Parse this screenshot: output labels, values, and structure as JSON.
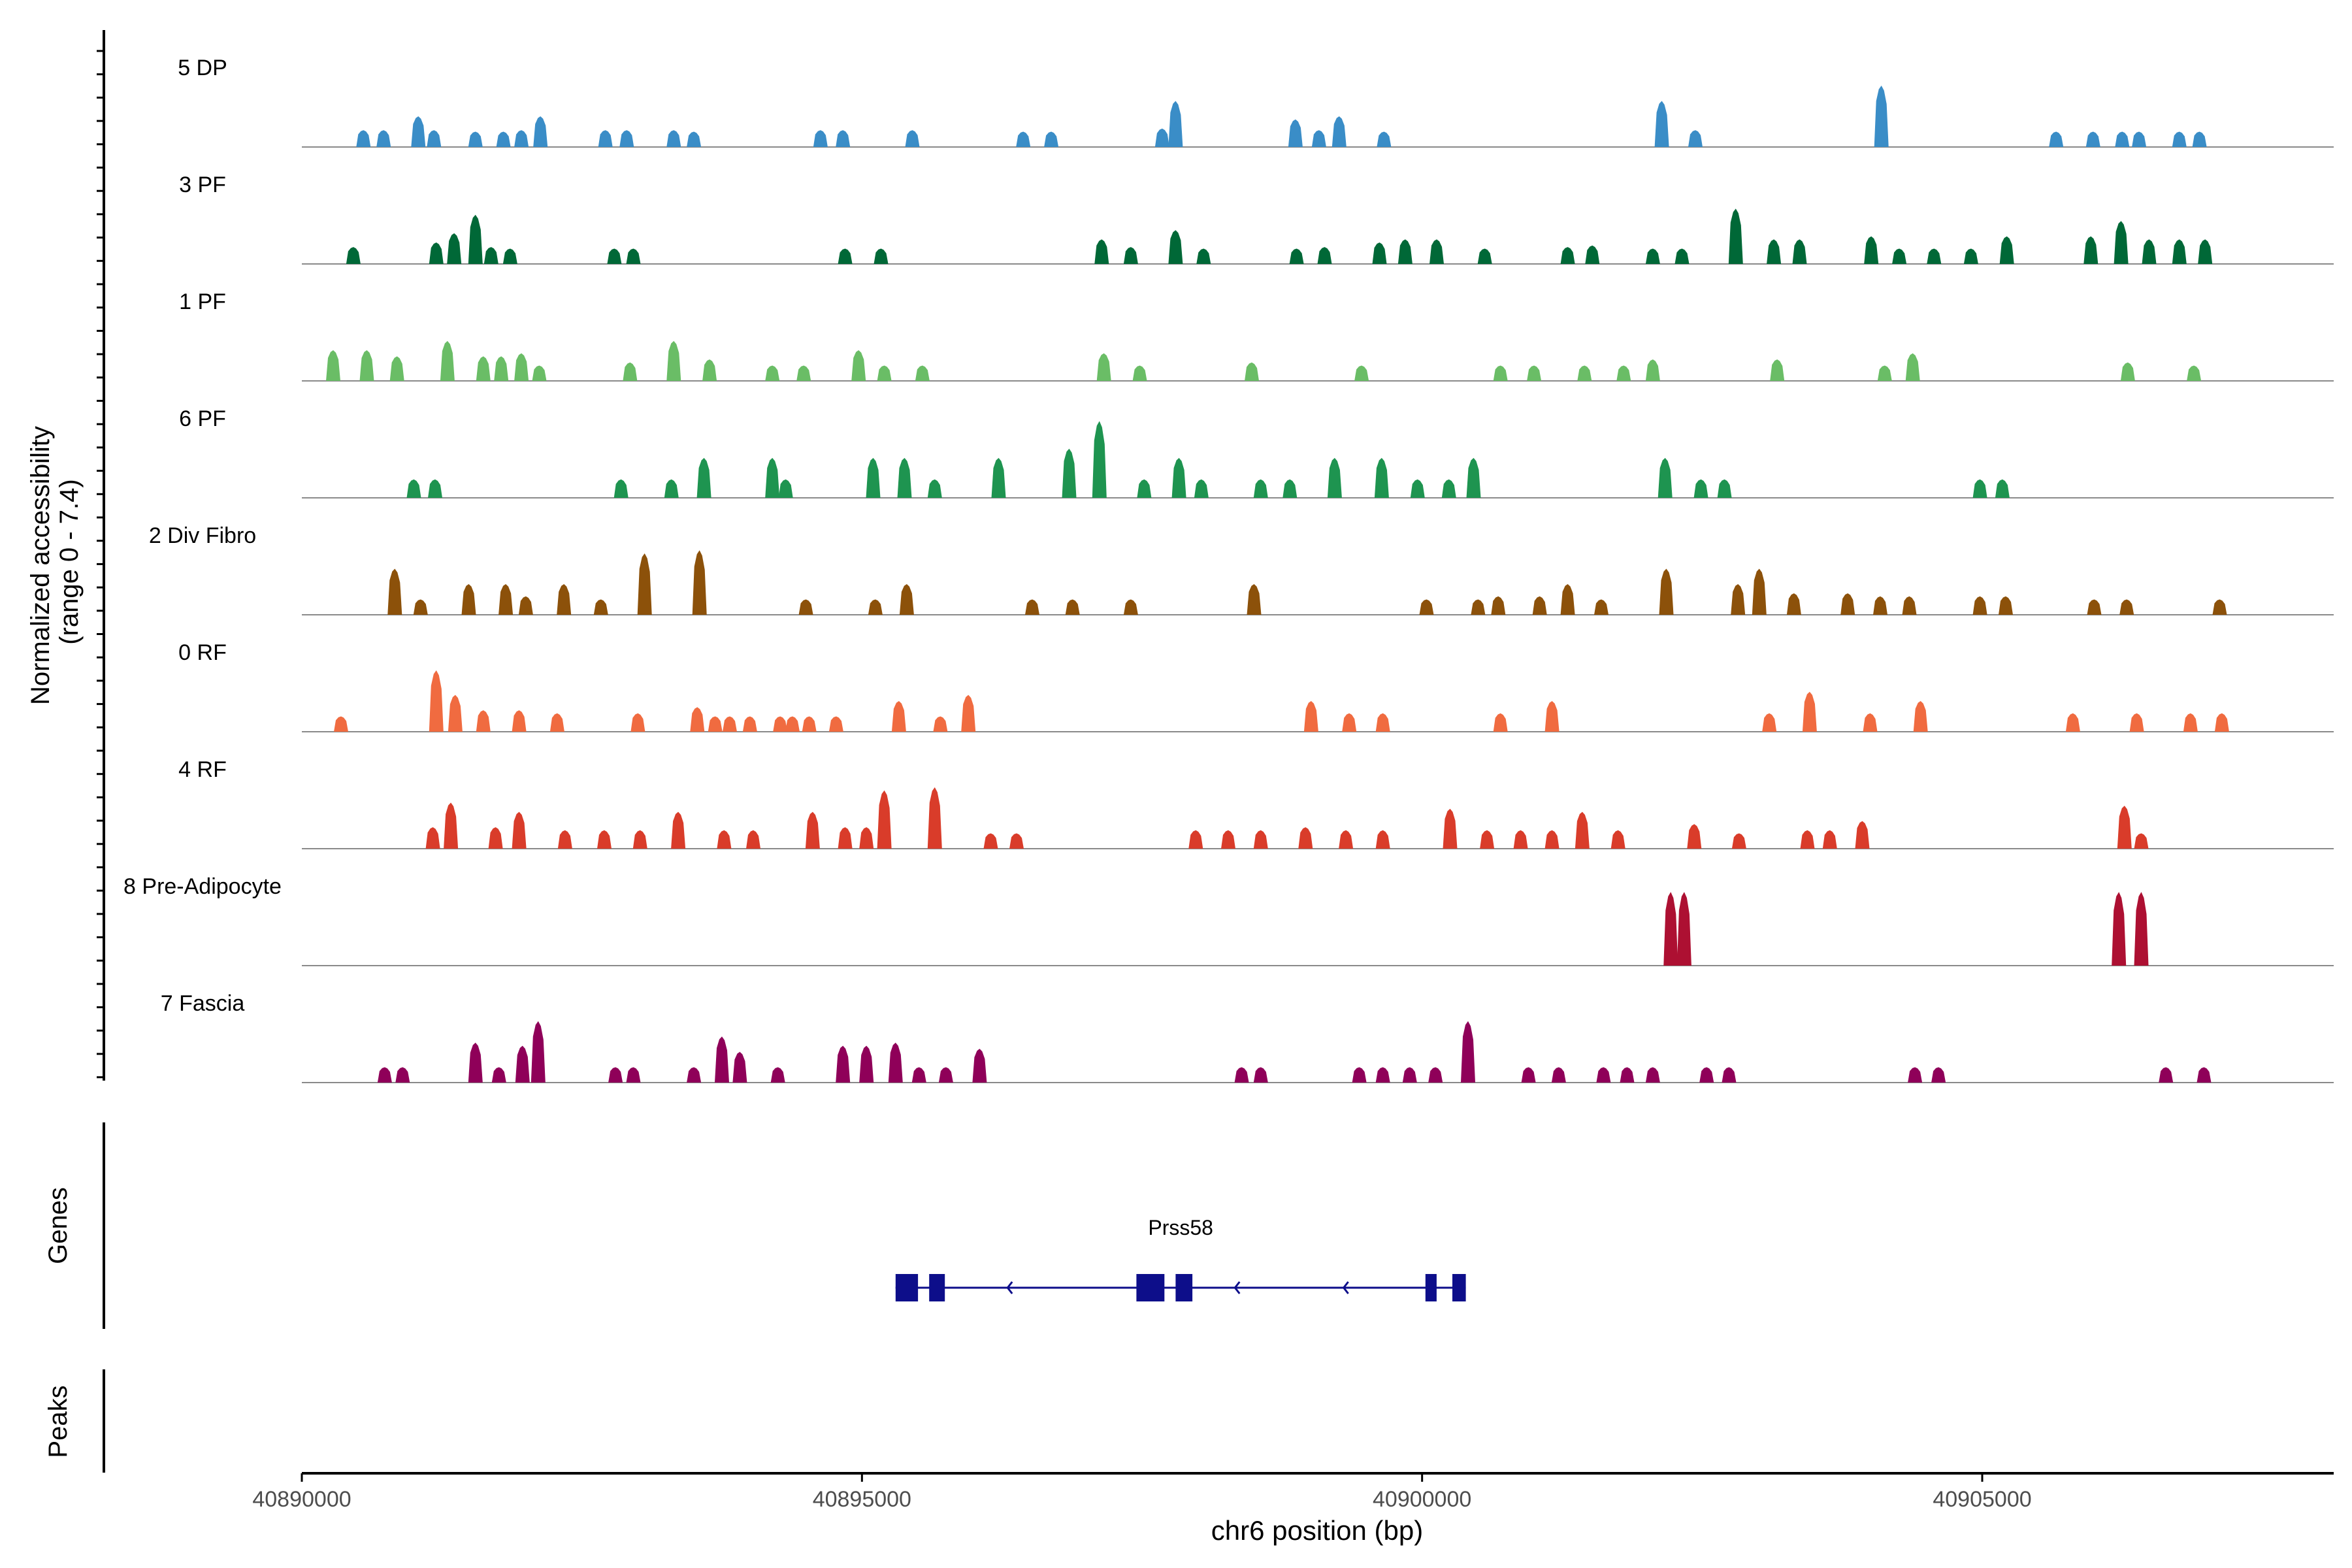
{
  "chart_data": {
    "type": "area",
    "title": "",
    "ylabel_line1": "Normalized accessibility",
    "ylabel_line2": "(range 0 - 7.4)",
    "y_range": [
      0,
      7.4
    ],
    "xlabel": "chr6 position (bp)",
    "xlim": [
      40889800,
      40908650
    ],
    "xticks": [
      40890000,
      40895000,
      40900000,
      40905000
    ],
    "xtick_labels": [
      "40890000",
      "40895000",
      "40900000",
      "40905000"
    ],
    "tracks": [
      {
        "name": "5 DP",
        "color": "#3A8DC7",
        "peaks": [
          [
            40890550,
            0.55
          ],
          [
            40890730,
            0.55
          ],
          [
            40891040,
            1.0
          ],
          [
            40891180,
            0.55
          ],
          [
            40891550,
            0.5
          ],
          [
            40891800,
            0.5
          ],
          [
            40891960,
            0.55
          ],
          [
            40892130,
            1.0
          ],
          [
            40892710,
            0.55
          ],
          [
            40892900,
            0.55
          ],
          [
            40893320,
            0.55
          ],
          [
            40893500,
            0.5
          ],
          [
            40894630,
            0.55
          ],
          [
            40894830,
            0.55
          ],
          [
            40895450,
            0.55
          ],
          [
            40896440,
            0.5
          ],
          [
            40896690,
            0.5
          ],
          [
            40897680,
            0.6
          ],
          [
            40897800,
            1.5
          ],
          [
            40898870,
            0.9
          ],
          [
            40899080,
            0.55
          ],
          [
            40899260,
            1.0
          ],
          [
            40899660,
            0.5
          ],
          [
            40902140,
            1.5
          ],
          [
            40902440,
            0.55
          ],
          [
            40904100,
            2.0
          ],
          [
            40905660,
            0.5
          ],
          [
            40905990,
            0.5
          ],
          [
            40906250,
            0.5
          ],
          [
            40906400,
            0.5
          ],
          [
            40906760,
            0.5
          ],
          [
            40906940,
            0.5
          ]
        ]
      },
      {
        "name": "3 PF",
        "color": "#006837",
        "peaks": [
          [
            40890460,
            0.55
          ],
          [
            40891200,
            0.7
          ],
          [
            40891360,
            1.0
          ],
          [
            40891550,
            1.6
          ],
          [
            40891690,
            0.55
          ],
          [
            40891860,
            0.5
          ],
          [
            40892790,
            0.5
          ],
          [
            40892960,
            0.5
          ],
          [
            40894850,
            0.5
          ],
          [
            40895170,
            0.5
          ],
          [
            40897140,
            0.8
          ],
          [
            40897400,
            0.55
          ],
          [
            40897800,
            1.1
          ],
          [
            40898050,
            0.5
          ],
          [
            40898880,
            0.5
          ],
          [
            40899130,
            0.55
          ],
          [
            40899620,
            0.7
          ],
          [
            40899850,
            0.8
          ],
          [
            40900130,
            0.8
          ],
          [
            40900560,
            0.5
          ],
          [
            40901300,
            0.55
          ],
          [
            40901520,
            0.6
          ],
          [
            40902060,
            0.5
          ],
          [
            40902320,
            0.5
          ],
          [
            40902800,
            1.8
          ],
          [
            40903140,
            0.8
          ],
          [
            40903370,
            0.8
          ],
          [
            40904010,
            0.9
          ],
          [
            40904260,
            0.5
          ],
          [
            40904570,
            0.5
          ],
          [
            40904900,
            0.5
          ],
          [
            40905220,
            0.9
          ],
          [
            40905970,
            0.9
          ],
          [
            40906240,
            1.4
          ],
          [
            40906490,
            0.8
          ],
          [
            40906760,
            0.8
          ],
          [
            40906990,
            0.8
          ]
        ]
      },
      {
        "name": "1 PF",
        "color": "#6ABD66",
        "peaks": [
          [
            40890280,
            1.0
          ],
          [
            40890580,
            1.0
          ],
          [
            40890850,
            0.8
          ],
          [
            40891300,
            1.3
          ],
          [
            40891620,
            0.8
          ],
          [
            40891780,
            0.8
          ],
          [
            40891960,
            0.9
          ],
          [
            40892120,
            0.5
          ],
          [
            40892930,
            0.6
          ],
          [
            40893320,
            1.3
          ],
          [
            40893640,
            0.7
          ],
          [
            40894200,
            0.5
          ],
          [
            40894480,
            0.5
          ],
          [
            40894970,
            1.0
          ],
          [
            40895200,
            0.5
          ],
          [
            40895540,
            0.5
          ],
          [
            40897160,
            0.9
          ],
          [
            40897480,
            0.5
          ],
          [
            40898480,
            0.6
          ],
          [
            40899460,
            0.5
          ],
          [
            40900700,
            0.5
          ],
          [
            40901000,
            0.5
          ],
          [
            40901450,
            0.5
          ],
          [
            40901800,
            0.5
          ],
          [
            40902060,
            0.7
          ],
          [
            40903170,
            0.7
          ],
          [
            40904130,
            0.5
          ],
          [
            40904380,
            0.9
          ],
          [
            40906300,
            0.6
          ],
          [
            40906890,
            0.5
          ]
        ]
      },
      {
        "name": "6 PF",
        "color": "#1E9450",
        "peaks": [
          [
            40891000,
            0.6
          ],
          [
            40891190,
            0.6
          ],
          [
            40892850,
            0.6
          ],
          [
            40893300,
            0.6
          ],
          [
            40893590,
            1.3
          ],
          [
            40894200,
            1.3
          ],
          [
            40894320,
            0.6
          ],
          [
            40895100,
            1.3
          ],
          [
            40895380,
            1.3
          ],
          [
            40895650,
            0.6
          ],
          [
            40896220,
            1.3
          ],
          [
            40896850,
            1.6
          ],
          [
            40897120,
            2.5
          ],
          [
            40897520,
            0.6
          ],
          [
            40897830,
            1.3
          ],
          [
            40898030,
            0.6
          ],
          [
            40898560,
            0.6
          ],
          [
            40898820,
            0.6
          ],
          [
            40899220,
            1.3
          ],
          [
            40899640,
            1.3
          ],
          [
            40899960,
            0.6
          ],
          [
            40900240,
            0.6
          ],
          [
            40900460,
            1.3
          ],
          [
            40902170,
            1.3
          ],
          [
            40902490,
            0.6
          ],
          [
            40902700,
            0.6
          ],
          [
            40904980,
            0.6
          ],
          [
            40905180,
            0.6
          ]
        ]
      },
      {
        "name": "2 Div Fibro",
        "color": "#8C510A",
        "peaks": [
          [
            40890830,
            1.5
          ],
          [
            40891060,
            0.5
          ],
          [
            40891490,
            1.0
          ],
          [
            40891820,
            1.0
          ],
          [
            40892000,
            0.6
          ],
          [
            40892340,
            1.0
          ],
          [
            40892670,
            0.5
          ],
          [
            40893060,
            2.0
          ],
          [
            40893550,
            2.1
          ],
          [
            40894500,
            0.5
          ],
          [
            40895120,
            0.5
          ],
          [
            40895400,
            1.0
          ],
          [
            40896520,
            0.5
          ],
          [
            40896880,
            0.5
          ],
          [
            40897400,
            0.5
          ],
          [
            40898500,
            1.0
          ],
          [
            40900040,
            0.5
          ],
          [
            40900500,
            0.5
          ],
          [
            40900680,
            0.6
          ],
          [
            40901050,
            0.6
          ],
          [
            40901300,
            1.0
          ],
          [
            40901600,
            0.5
          ],
          [
            40902180,
            1.5
          ],
          [
            40902820,
            1.0
          ],
          [
            40903010,
            1.5
          ],
          [
            40903320,
            0.7
          ],
          [
            40903800,
            0.7
          ],
          [
            40904090,
            0.6
          ],
          [
            40904350,
            0.6
          ],
          [
            40904980,
            0.6
          ],
          [
            40905210,
            0.6
          ],
          [
            40906000,
            0.5
          ],
          [
            40906290,
            0.5
          ],
          [
            40907120,
            0.5
          ]
        ]
      },
      {
        "name": "0 RF",
        "color": "#F06B40",
        "peaks": [
          [
            40890350,
            0.5
          ],
          [
            40891200,
            2.0
          ],
          [
            40891370,
            1.2
          ],
          [
            40891620,
            0.7
          ],
          [
            40891940,
            0.7
          ],
          [
            40892280,
            0.6
          ],
          [
            40893000,
            0.6
          ],
          [
            40893530,
            0.8
          ],
          [
            40893690,
            0.5
          ],
          [
            40893820,
            0.5
          ],
          [
            40894000,
            0.5
          ],
          [
            40894270,
            0.5
          ],
          [
            40894380,
            0.5
          ],
          [
            40894530,
            0.5
          ],
          [
            40894770,
            0.5
          ],
          [
            40895330,
            1.0
          ],
          [
            40895700,
            0.5
          ],
          [
            40895950,
            1.2
          ],
          [
            40899010,
            1.0
          ],
          [
            40899350,
            0.6
          ],
          [
            40899650,
            0.6
          ],
          [
            40900700,
            0.6
          ],
          [
            40901160,
            1.0
          ],
          [
            40903100,
            0.6
          ],
          [
            40903460,
            1.3
          ],
          [
            40904000,
            0.6
          ],
          [
            40904450,
            1.0
          ],
          [
            40905810,
            0.6
          ],
          [
            40906380,
            0.6
          ],
          [
            40906860,
            0.6
          ],
          [
            40907140,
            0.6
          ]
        ]
      },
      {
        "name": "4 RF",
        "color": "#D93C2A",
        "peaks": [
          [
            40891170,
            0.7
          ],
          [
            40891330,
            1.5
          ],
          [
            40891730,
            0.7
          ],
          [
            40891940,
            1.2
          ],
          [
            40892350,
            0.6
          ],
          [
            40892700,
            0.6
          ],
          [
            40893020,
            0.6
          ],
          [
            40893360,
            1.2
          ],
          [
            40893770,
            0.6
          ],
          [
            40894030,
            0.6
          ],
          [
            40894560,
            1.2
          ],
          [
            40894850,
            0.7
          ],
          [
            40895040,
            0.7
          ],
          [
            40895200,
            1.9
          ],
          [
            40895650,
            2.0
          ],
          [
            40896150,
            0.5
          ],
          [
            40896380,
            0.5
          ],
          [
            40897980,
            0.6
          ],
          [
            40898270,
            0.6
          ],
          [
            40898560,
            0.6
          ],
          [
            40898960,
            0.7
          ],
          [
            40899320,
            0.6
          ],
          [
            40899650,
            0.6
          ],
          [
            40900250,
            1.3
          ],
          [
            40900580,
            0.6
          ],
          [
            40900880,
            0.6
          ],
          [
            40901160,
            0.6
          ],
          [
            40901430,
            1.2
          ],
          [
            40901750,
            0.6
          ],
          [
            40902430,
            0.8
          ],
          [
            40902830,
            0.5
          ],
          [
            40903440,
            0.6
          ],
          [
            40903640,
            0.6
          ],
          [
            40903930,
            0.9
          ],
          [
            40906270,
            1.4
          ],
          [
            40906420,
            0.5
          ]
        ]
      },
      {
        "name": "8 Pre-Adipocyte",
        "color": "#AD1032",
        "peaks": [
          [
            40902220,
            2.4
          ],
          [
            40902340,
            2.4
          ],
          [
            40906220,
            2.4
          ],
          [
            40906420,
            2.4
          ]
        ]
      },
      {
        "name": "7 Fascia",
        "color": "#8F0059",
        "peaks": [
          [
            40890740,
            0.5
          ],
          [
            40890900,
            0.5
          ],
          [
            40891550,
            1.3
          ],
          [
            40891760,
            0.5
          ],
          [
            40891970,
            1.2
          ],
          [
            40892110,
            2.0
          ],
          [
            40892800,
            0.5
          ],
          [
            40892960,
            0.5
          ],
          [
            40893500,
            0.5
          ],
          [
            40893750,
            1.5
          ],
          [
            40893910,
            1.0
          ],
          [
            40894250,
            0.5
          ],
          [
            40894830,
            1.2
          ],
          [
            40895040,
            1.2
          ],
          [
            40895300,
            1.3
          ],
          [
            40895510,
            0.5
          ],
          [
            40895750,
            0.5
          ],
          [
            40896050,
            1.1
          ],
          [
            40898390,
            0.5
          ],
          [
            40898560,
            0.5
          ],
          [
            40899440,
            0.5
          ],
          [
            40899650,
            0.5
          ],
          [
            40899890,
            0.5
          ],
          [
            40900120,
            0.5
          ],
          [
            40900410,
            2.0
          ],
          [
            40900950,
            0.5
          ],
          [
            40901220,
            0.5
          ],
          [
            40901620,
            0.5
          ],
          [
            40901830,
            0.5
          ],
          [
            40902060,
            0.5
          ],
          [
            40902540,
            0.5
          ],
          [
            40902740,
            0.5
          ],
          [
            40904400,
            0.5
          ],
          [
            40904610,
            0.5
          ],
          [
            40906640,
            0.5
          ],
          [
            40906980,
            0.5
          ]
        ]
      }
    ],
    "genes_label": "Genes",
    "peaks_label": "Peaks",
    "gene": {
      "name": "Prss58",
      "color": "#0D0E8A",
      "start": 40895300,
      "end": 40900390,
      "strand": "-",
      "exons": [
        [
          40895300,
          40895500
        ],
        [
          40895600,
          40895740
        ],
        [
          40897450,
          40897700
        ],
        [
          40897800,
          40897950
        ],
        [
          40900030,
          40900130
        ],
        [
          40900270,
          40900390
        ]
      ],
      "arrows": [
        40896300,
        40898330,
        40899300
      ]
    }
  }
}
